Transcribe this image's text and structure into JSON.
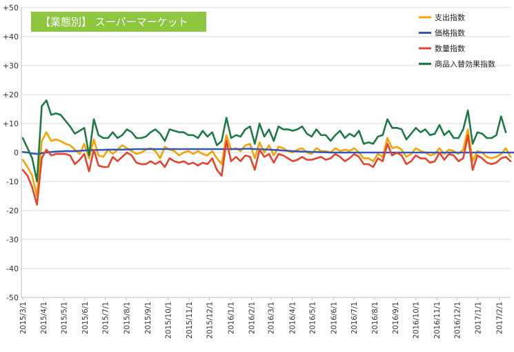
{
  "chart_data": {
    "type": "line",
    "title": "【業態別】 スーパーマーケット",
    "title_bg": "#8dc63f",
    "xlabel": "",
    "ylabel": "",
    "ylim": [
      -50,
      50
    ],
    "yticks": [
      -50,
      -40,
      -30,
      -20,
      -10,
      0,
      10,
      20,
      30,
      40,
      50
    ],
    "ytick_labels": [
      "-50",
      "-40",
      "-30",
      "-20",
      "-10",
      "0",
      "+10",
      "+20",
      "+30",
      "+40",
      "+50"
    ],
    "grid": true,
    "legend_position": "top-right",
    "x_start": "2015/3/1",
    "x_tick_labels": [
      "2015/3/1",
      "2015/4/1",
      "2015/5/1",
      "2015/6/1",
      "2015/7/1",
      "2015/8/1",
      "2015/9/1",
      "2015/10/1",
      "2015/11/1",
      "2015/12/1",
      "2016/1/1",
      "2016/2/1",
      "2016/3/1",
      "2016/4/1",
      "2016/5/1",
      "2016/6/1",
      "2016/7/1",
      "2016/8/1",
      "2016/9/1",
      "2016/10/1",
      "2016/11/1",
      "2016/12/1",
      "2017/1/1",
      "2017/2/1"
    ],
    "x_tick_weeks": [
      0,
      4.4,
      8.7,
      13.1,
      17.4,
      21.9,
      26.4,
      30.7,
      35.1,
      39.4,
      43.9,
      48.3,
      52.4,
      56.9,
      61.1,
      65.6,
      69.9,
      74.3,
      78.7,
      83.0,
      87.4,
      91.7,
      96.1,
      100.6
    ],
    "series": [
      {
        "name": "支出指数",
        "color": "#f5a300",
        "values": [
          -2.5,
          -5,
          -8,
          -15,
          4,
          7,
          4,
          4.5,
          4,
          3,
          2.5,
          1,
          -0.5,
          3,
          -2,
          4.5,
          -1,
          -1.5,
          1,
          -0.5,
          1,
          2.5,
          1.5,
          0.5,
          -0.5,
          0,
          1,
          1.5,
          0.5,
          -2,
          2,
          1,
          0.5,
          -1,
          0,
          0.5,
          -0.5,
          0.5,
          -0.5,
          -1,
          0.5,
          -2,
          -4,
          6,
          1,
          1.5,
          0.5,
          2.5,
          3,
          -2,
          3.5,
          0,
          2.5,
          -1,
          2,
          1.5,
          0.5,
          0,
          1,
          1.5,
          0,
          -0.5,
          1.5,
          0.5,
          0.5,
          0,
          1.5,
          0.5,
          1,
          0.5,
          1.5,
          0,
          -2,
          -2,
          -3,
          -0.5,
          -1.5,
          5,
          1.5,
          2,
          1,
          -1.5,
          -0.5,
          1.5,
          0.5,
          0,
          -1,
          -0.5,
          1.5,
          -0.5,
          1,
          0.5,
          -0.5,
          1,
          8,
          -3,
          0.5,
          0,
          -1.5,
          -2,
          -1.5,
          -0.5,
          1.5,
          -1.5
        ],
        "label_week": 96.1
      },
      {
        "name": "価格指数",
        "color": "#3355bb",
        "values": [
          0.2,
          0,
          -0.3,
          -0.5,
          -0.2,
          0,
          0.2,
          0.3,
          0.4,
          0.5,
          0.5,
          0.5,
          0.6,
          0.7,
          0.8,
          0.8,
          0.9,
          0.9,
          1,
          1,
          1,
          1,
          1.1,
          1.1,
          1.2,
          1.2,
          1.2,
          1.2,
          1.2,
          1.2,
          1.2,
          1.2,
          1.2,
          1.2,
          1.2,
          1.2,
          1.2,
          1.2,
          1.2,
          1.2,
          1.2,
          1.2,
          1.2,
          1.2,
          1.2,
          1.2,
          1.2,
          1.3,
          1.3,
          1.2,
          1.2,
          1.1,
          1,
          0.9,
          0.8,
          0.7,
          0.6,
          0.5,
          0.4,
          0.3,
          0.3,
          0.2,
          0.2,
          0.1,
          0.1,
          0,
          0,
          0,
          0,
          0,
          0,
          0,
          0,
          0,
          0,
          0,
          0,
          0,
          0,
          0,
          0,
          0,
          0,
          0,
          0,
          0,
          0,
          0,
          0,
          0,
          0,
          0,
          0,
          0,
          0,
          0,
          0,
          0,
          0,
          0,
          0,
          0,
          0,
          0,
          0
        ]
      },
      {
        "name": "数量指数",
        "color": "#e8412c",
        "values": [
          -6,
          -8,
          -12,
          -18,
          -2,
          1,
          -1,
          -0.5,
          -0.5,
          -0.5,
          -1,
          -4,
          -2.5,
          -0.5,
          -6.5,
          1,
          -4.5,
          -5,
          -5,
          -1.5,
          -3,
          -1.5,
          0,
          -1,
          -3.5,
          -4,
          -4,
          -3,
          -4,
          -3,
          -5,
          -2,
          -3,
          -3.5,
          -3,
          -4,
          -3.5,
          -4.5,
          -3.5,
          -4,
          -2,
          -6,
          -8,
          4,
          -3,
          -1.5,
          -3,
          -1,
          -1.5,
          -6,
          1,
          -1.5,
          -0.5,
          -3.5,
          -0.5,
          -1,
          -2,
          -3,
          -2.5,
          -1.5,
          -2.5,
          -2.5,
          -2,
          -1.5,
          -2.5,
          -2,
          -0.5,
          -1.5,
          -3,
          -2,
          -0.5,
          -1.5,
          -4,
          -4,
          -5,
          -2,
          -3,
          3,
          -1,
          0,
          -1,
          -4,
          -3,
          -1,
          -2,
          -2,
          -3.5,
          -3,
          0,
          -2.5,
          -0.5,
          -1,
          -3,
          -2,
          6,
          -6,
          -1,
          -2,
          -3.5,
          -4,
          -3.5,
          -2,
          -1.5,
          -3
        ]
      },
      {
        "name": "商品入替効果指数",
        "color": "#1c7a45",
        "values": [
          5,
          1.5,
          -2,
          -10,
          16,
          18,
          13,
          13.5,
          13,
          11,
          9,
          6.5,
          7.5,
          8.5,
          -1,
          11.5,
          6,
          5,
          5,
          7,
          5,
          6,
          8,
          7,
          5,
          5,
          5.5,
          7,
          8,
          6.5,
          4,
          8,
          7.5,
          7,
          7,
          6,
          6,
          5,
          7.5,
          5.5,
          7,
          2.5,
          4,
          12,
          5,
          6,
          5.5,
          8,
          9,
          3,
          10,
          5.5,
          8,
          4,
          9,
          8,
          8,
          7.5,
          8,
          9,
          6.5,
          5.5,
          8,
          6,
          6,
          4,
          6,
          7.5,
          5,
          6.5,
          5.5,
          7.5,
          3,
          3.5,
          3,
          5.5,
          6,
          11.5,
          8.5,
          8.5,
          8,
          4.5,
          6.5,
          8.5,
          7,
          8,
          6,
          6.5,
          9.5,
          6,
          7.5,
          5,
          5,
          8,
          14.5,
          3,
          7,
          6.5,
          5,
          5,
          6,
          12.5,
          7
        ]
      }
    ]
  }
}
